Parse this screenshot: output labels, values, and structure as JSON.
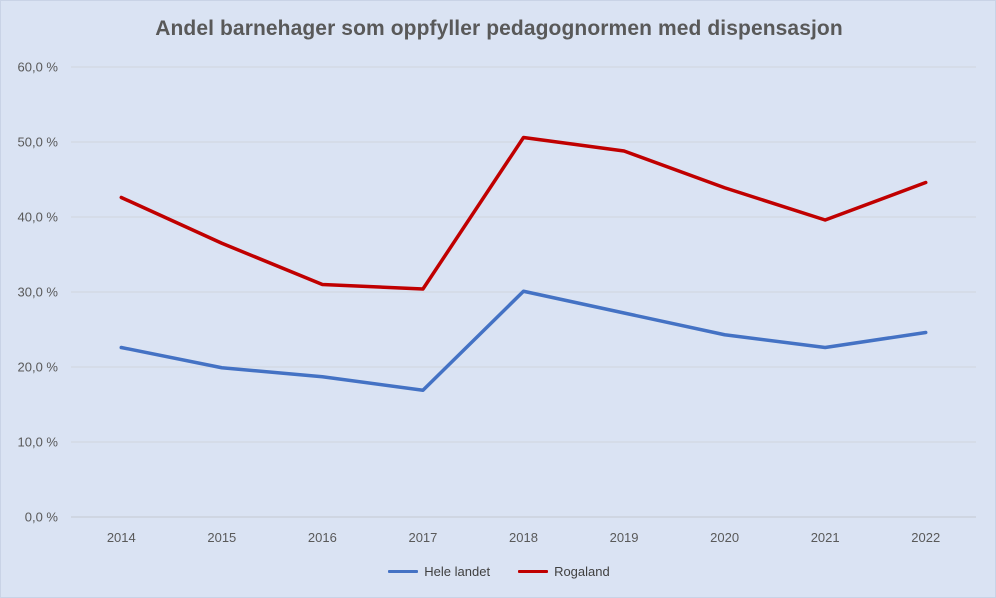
{
  "chart_data": {
    "type": "line",
    "title": "Andel barnehager som oppfyller pedagognormen med dispensasjon",
    "xlabel": "",
    "ylabel": "",
    "categories": [
      "2014",
      "2015",
      "2016",
      "2017",
      "2018",
      "2019",
      "2020",
      "2021",
      "2022"
    ],
    "ylim": [
      0,
      60
    ],
    "yticks": [
      0,
      10,
      20,
      30,
      40,
      50,
      60
    ],
    "ytick_labels": [
      "0,0 %",
      "10,0 %",
      "20,0 %",
      "30,0 %",
      "40,0 %",
      "50,0 %",
      "60,0 %"
    ],
    "grid": true,
    "legend_position": "bottom",
    "series": [
      {
        "name": "Hele landet",
        "color": "#4472c4",
        "values": [
          22.6,
          19.9,
          18.7,
          16.9,
          30.1,
          27.2,
          24.3,
          22.6,
          24.6
        ]
      },
      {
        "name": "Rogaland",
        "color": "#c00000",
        "values": [
          42.6,
          36.5,
          31.0,
          30.4,
          50.6,
          48.8,
          43.9,
          39.6,
          44.6
        ]
      }
    ]
  }
}
